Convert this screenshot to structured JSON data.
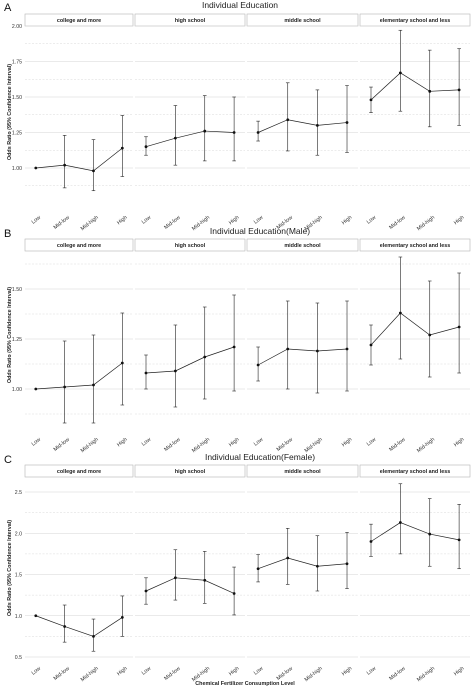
{
  "chart_data": [
    {
      "type": "line",
      "panel_label": "A",
      "title": "Individual Education",
      "ylabel": "Odds Ratio (95% Confidence Interval)",
      "xlabel": "",
      "ylim": [
        0.5,
        2.0
      ],
      "yticks": [
        "2.00",
        "1.75",
        "1.50",
        "1.25",
        "1.00"
      ],
      "ytick_values": [
        2.0,
        1.75,
        1.5,
        1.25,
        1.0
      ],
      "categories": [
        "Low",
        "Mid-low",
        "Mid-high",
        "High"
      ],
      "grid": true,
      "facets": [
        {
          "name": "college and more",
          "values": [
            1.0,
            1.02,
            0.98,
            1.14
          ],
          "lower": [
            1.0,
            0.86,
            0.84,
            0.94
          ],
          "upper": [
            1.0,
            1.23,
            1.2,
            1.37
          ]
        },
        {
          "name": "high school",
          "values": [
            1.15,
            1.21,
            1.26,
            1.25
          ],
          "lower": [
            1.09,
            1.02,
            1.05,
            1.05
          ],
          "upper": [
            1.22,
            1.44,
            1.51,
            1.5
          ]
        },
        {
          "name": "middle school",
          "values": [
            1.25,
            1.34,
            1.3,
            1.32
          ],
          "lower": [
            1.19,
            1.12,
            1.09,
            1.11
          ],
          "upper": [
            1.33,
            1.6,
            1.55,
            1.58
          ]
        },
        {
          "name": "elementary school and less",
          "values": [
            1.48,
            1.67,
            1.54,
            1.55
          ],
          "lower": [
            1.39,
            1.4,
            1.29,
            1.3
          ],
          "upper": [
            1.57,
            1.97,
            1.83,
            1.84
          ]
        }
      ]
    },
    {
      "type": "line",
      "panel_label": "B",
      "title": "Individual Education(Male)",
      "ylabel": "Odds Ratio (95% Confidence Interval)",
      "xlabel": "",
      "ylim": [
        0.85,
        1.75
      ],
      "yticks": [
        "1.50",
        "1.25",
        "1.00"
      ],
      "ytick_values": [
        1.5,
        1.25,
        1.0
      ],
      "categories": [
        "Low",
        "Mid-low",
        "Mid-high",
        "High"
      ],
      "grid": true,
      "facets": [
        {
          "name": "college and more",
          "values": [
            1.0,
            1.01,
            1.02,
            1.13
          ],
          "lower": [
            1.0,
            0.83,
            0.83,
            0.92
          ],
          "upper": [
            1.0,
            1.24,
            1.27,
            1.38
          ]
        },
        {
          "name": "high school",
          "values": [
            1.08,
            1.09,
            1.16,
            1.21
          ],
          "lower": [
            1.0,
            0.91,
            0.95,
            0.99
          ],
          "upper": [
            1.17,
            1.32,
            1.41,
            1.47
          ]
        },
        {
          "name": "middle school",
          "values": [
            1.12,
            1.2,
            1.19,
            1.2
          ],
          "lower": [
            1.04,
            1.0,
            0.98,
            0.99
          ],
          "upper": [
            1.21,
            1.44,
            1.43,
            1.44
          ]
        },
        {
          "name": "elementary school and less",
          "values": [
            1.22,
            1.38,
            1.27,
            1.31
          ],
          "lower": [
            1.12,
            1.15,
            1.06,
            1.08
          ],
          "upper": [
            1.32,
            1.66,
            1.54,
            1.58
          ]
        }
      ]
    },
    {
      "type": "line",
      "panel_label": "C",
      "title": "Individual Education(Female)",
      "ylabel": "Odds Ratio (95% Confidence Interval)",
      "xlabel": "Chemical Fertilizer Consumption Level",
      "ylim": [
        0.5,
        2.6
      ],
      "yticks": [
        "2.5",
        "2.0",
        "1.5",
        "1.0",
        "0.5"
      ],
      "ytick_values": [
        2.5,
        2.0,
        1.5,
        1.0,
        0.5
      ],
      "categories": [
        "Low",
        "Mid-low",
        "Mid-high",
        "High"
      ],
      "grid": true,
      "facets": [
        {
          "name": "college and more",
          "values": [
            1.0,
            0.87,
            0.75,
            0.98
          ],
          "lower": [
            1.0,
            0.68,
            0.57,
            0.75
          ],
          "upper": [
            1.0,
            1.13,
            0.96,
            1.24
          ]
        },
        {
          "name": "high school",
          "values": [
            1.3,
            1.46,
            1.43,
            1.27
          ],
          "lower": [
            1.14,
            1.19,
            1.15,
            1.01
          ],
          "upper": [
            1.46,
            1.8,
            1.78,
            1.59
          ]
        },
        {
          "name": "middle school",
          "values": [
            1.57,
            1.7,
            1.6,
            1.63
          ],
          "lower": [
            1.41,
            1.38,
            1.3,
            1.33
          ],
          "upper": [
            1.74,
            2.06,
            1.97,
            2.01
          ]
        },
        {
          "name": "elementary school and less",
          "values": [
            1.9,
            2.13,
            1.99,
            1.92
          ],
          "lower": [
            1.72,
            1.75,
            1.6,
            1.57
          ],
          "upper": [
            2.11,
            2.6,
            2.42,
            2.35
          ]
        }
      ]
    }
  ]
}
